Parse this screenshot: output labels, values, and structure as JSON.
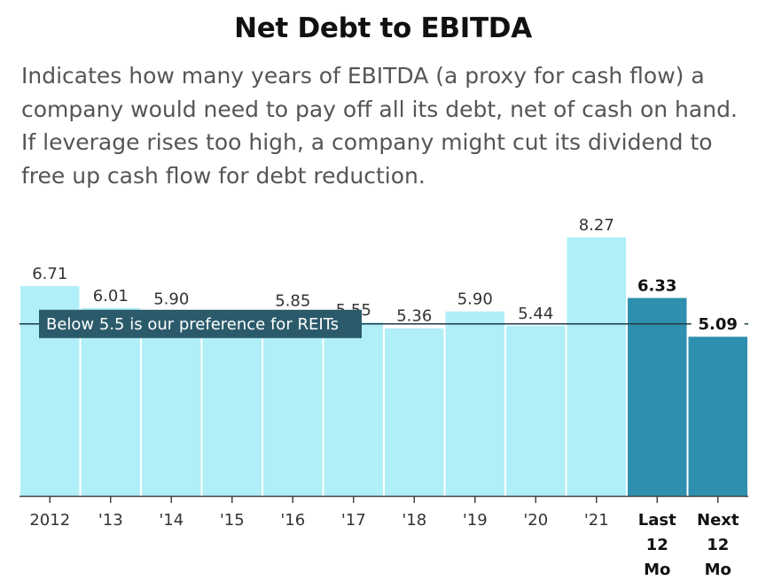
{
  "title": "Net Debt to EBITDA",
  "description": "Indicates how many years of EBITDA (a proxy for cash flow) a company would need to pay off all its debt, net of cash on hand. If leverage rises too high, a company might cut its dividend to free up cash flow for debt reduction.",
  "colors": {
    "historical_bar": "#b0eff8",
    "forecast_bar": "#2e8fae",
    "reference_line": "#1d3b47",
    "reference_label_bg": "#2b5b6b",
    "reference_label_text": "#ffffff"
  },
  "chart_data": {
    "type": "bar",
    "categories": [
      "2012",
      "'13",
      "'14",
      "'15",
      "'16",
      "'17",
      "'18",
      "'19",
      "'20",
      "'21",
      "Last 12 Mo",
      "Next 12 Mo"
    ],
    "values": [
      6.71,
      6.01,
      5.9,
      5.85,
      5.85,
      5.55,
      5.36,
      5.9,
      5.44,
      8.27,
      6.33,
      5.09
    ],
    "value_labels": [
      "6.71",
      "6.01",
      "5.90",
      "",
      "5.85",
      "5.55",
      "5.36",
      "5.90",
      "5.44",
      "8.27",
      "6.33",
      "5.09"
    ],
    "highlighted": [
      false,
      false,
      false,
      false,
      false,
      false,
      false,
      false,
      false,
      false,
      true,
      true
    ],
    "ylim": [
      0,
      8.27
    ],
    "reference_line": {
      "value": 5.5,
      "label": "Below 5.5 is our preference for REITs"
    },
    "grid": false,
    "xlabel": "",
    "ylabel": ""
  }
}
